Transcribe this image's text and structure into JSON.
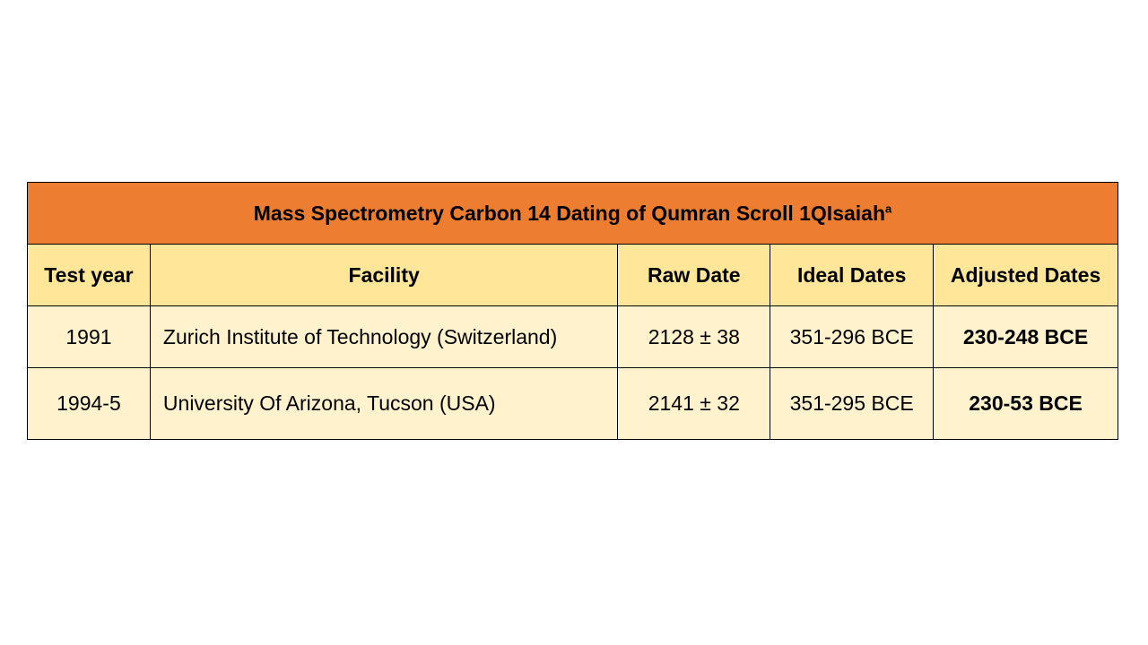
{
  "table": {
    "title": "Mass Spectrometry Carbon 14 Dating of Qumran Scroll 1QIsaiah",
    "title_superscript": "a",
    "headers": [
      "Test year",
      "Facility",
      "Raw Date",
      "Ideal Dates",
      "Adjusted Dates"
    ],
    "rows": [
      [
        "1991",
        "Zurich Institute of Technology (Switzerland)",
        "2128 ± 38",
        "351-296 BCE",
        "230-248 BCE"
      ],
      [
        "1994-5",
        "University Of Arizona, Tucson (USA)",
        "2141 ± 32",
        "351-295 BCE",
        "230-53 BCE"
      ]
    ]
  }
}
